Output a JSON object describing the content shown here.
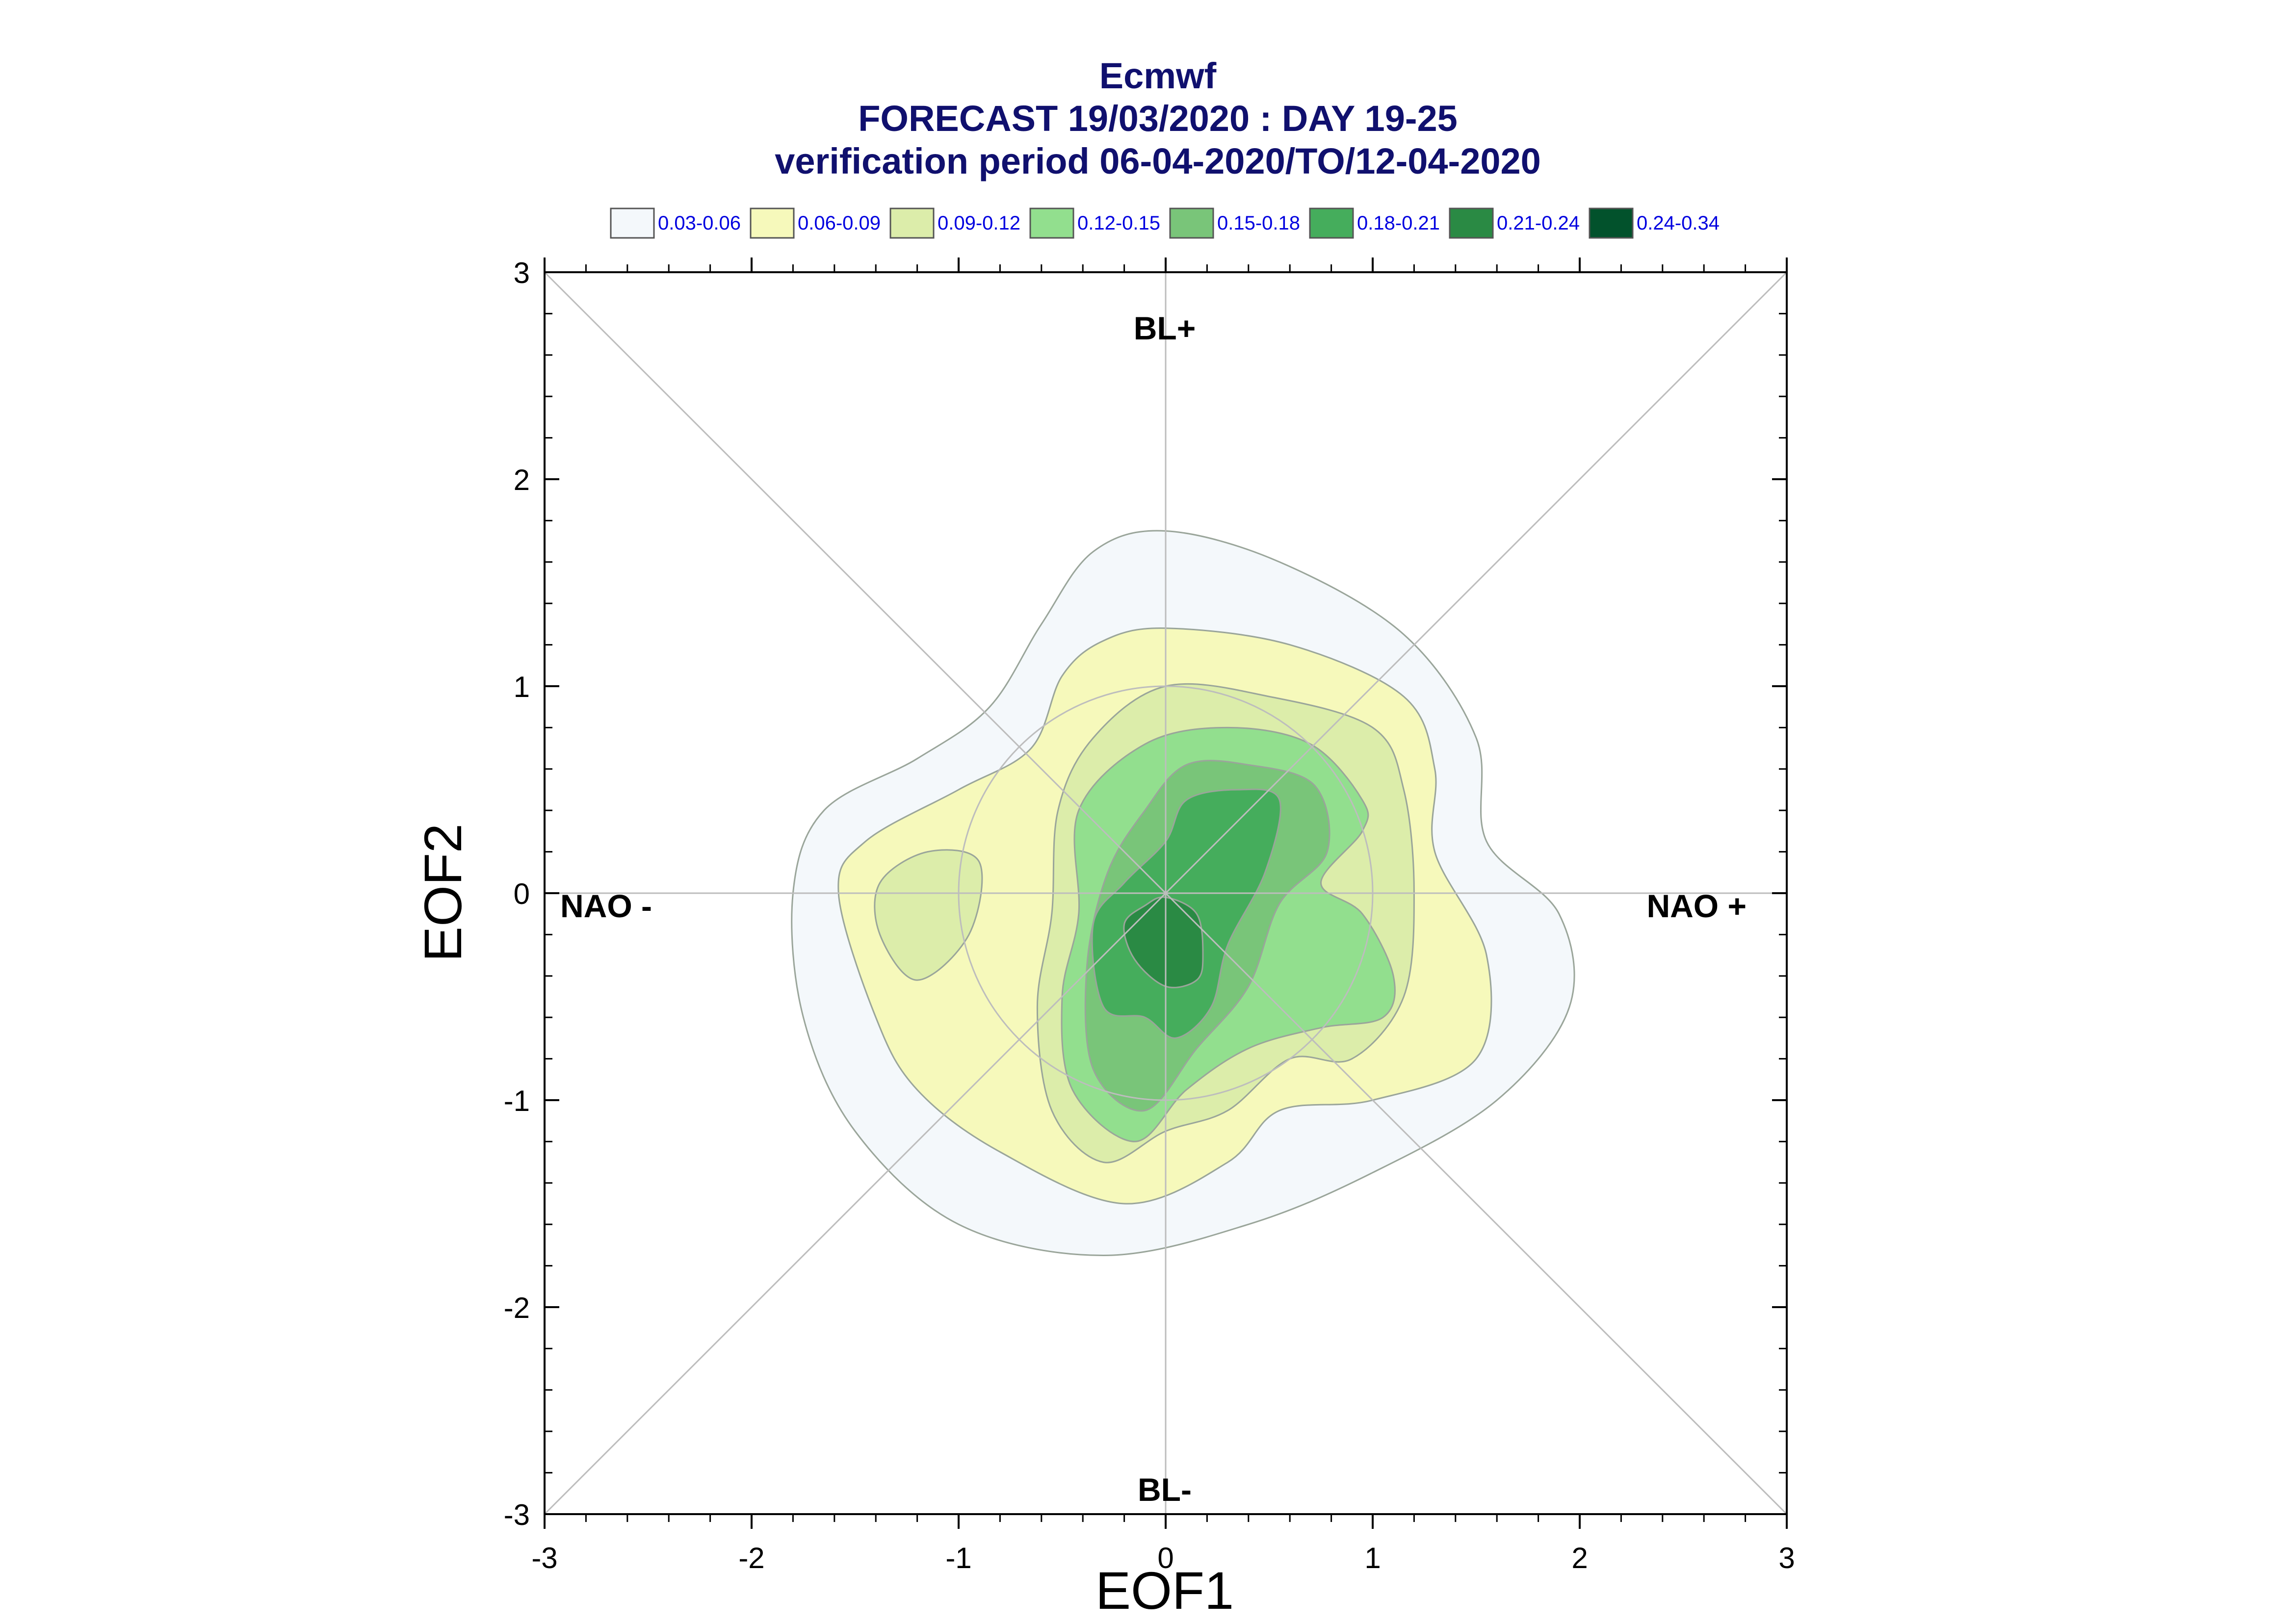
{
  "chart_data": {
    "type": "contour",
    "title_lines": [
      "Ecmwf",
      "FORECAST 19/03/2020 : DAY 19-25",
      "verification period 06-04-2020/TO/12-04-2020"
    ],
    "xlabel": "EOF1",
    "ylabel": "EOF2",
    "xlim": [
      -3,
      3
    ],
    "ylim": [
      -3,
      3
    ],
    "x_ticks": [
      "-3",
      "-2",
      "-1",
      "0",
      "1",
      "2",
      "3"
    ],
    "y_ticks": [
      "-3",
      "-2",
      "-1",
      "0",
      "1",
      "2",
      "3"
    ],
    "legend": {
      "placement": "top",
      "levels": [
        {
          "label": "0.03-0.06",
          "color": "#f4f8fb"
        },
        {
          "label": "0.06-0.09",
          "color": "#f6f9bb"
        },
        {
          "label": "0.09-0.12",
          "color": "#dcedaa"
        },
        {
          "label": "0.12-0.15",
          "color": "#92df8e"
        },
        {
          "label": "0.15-0.18",
          "color": "#79c579"
        },
        {
          "label": "0.18-0.21",
          "color": "#45ad5c"
        },
        {
          "label": "0.21-0.24",
          "color": "#2a8a44"
        },
        {
          "label": "0.24-0.34",
          "color": "#02522c"
        }
      ]
    },
    "regime_labels": {
      "top": "BL+",
      "bottom": "BL-",
      "left": "NAO -",
      "right": "NAO +"
    },
    "reference_circle_radius": 1,
    "contours": [
      {
        "level": "0.03-0.06",
        "points": [
          [
            0,
            1.75
          ],
          [
            0.55,
            1.6
          ],
          [
            1.15,
            1.25
          ],
          [
            1.5,
            0.75
          ],
          [
            1.55,
            0.25
          ],
          [
            1.9,
            -0.1
          ],
          [
            1.95,
            -0.55
          ],
          [
            1.6,
            -1.0
          ],
          [
            1.0,
            -1.35
          ],
          [
            0.4,
            -1.6
          ],
          [
            -0.3,
            -1.75
          ],
          [
            -1.0,
            -1.6
          ],
          [
            -1.5,
            -1.15
          ],
          [
            -1.75,
            -0.6
          ],
          [
            -1.8,
            0.0
          ],
          [
            -1.65,
            0.4
          ],
          [
            -1.2,
            0.65
          ],
          [
            -0.85,
            0.9
          ],
          [
            -0.6,
            1.3
          ],
          [
            -0.35,
            1.65
          ]
        ]
      },
      {
        "level": "0.06-0.09",
        "points": [
          [
            0,
            1.28
          ],
          [
            0.6,
            1.2
          ],
          [
            1.15,
            0.95
          ],
          [
            1.3,
            0.6
          ],
          [
            1.3,
            0.2
          ],
          [
            1.55,
            -0.3
          ],
          [
            1.5,
            -0.8
          ],
          [
            1.0,
            -1.0
          ],
          [
            0.55,
            -1.05
          ],
          [
            0.3,
            -1.3
          ],
          [
            -0.2,
            -1.5
          ],
          [
            -0.8,
            -1.25
          ],
          [
            -1.2,
            -0.95
          ],
          [
            -1.4,
            -0.6
          ],
          [
            -1.58,
            0.0
          ],
          [
            -1.45,
            0.25
          ],
          [
            -1.0,
            0.5
          ],
          [
            -0.65,
            0.7
          ],
          [
            -0.5,
            1.05
          ],
          [
            -0.3,
            1.22
          ]
        ]
      },
      {
        "level": "0.09-0.12",
        "points": [
          [
            0,
            1.0
          ],
          [
            0.5,
            0.95
          ],
          [
            1.0,
            0.8
          ],
          [
            1.15,
            0.5
          ],
          [
            1.2,
            0.0
          ],
          [
            1.15,
            -0.5
          ],
          [
            0.9,
            -0.8
          ],
          [
            0.6,
            -0.8
          ],
          [
            0.3,
            -1.05
          ],
          [
            0.0,
            -1.15
          ],
          [
            -0.3,
            -1.3
          ],
          [
            -0.55,
            -1.05
          ],
          [
            -0.62,
            -0.55
          ],
          [
            -0.55,
            -0.1
          ],
          [
            -0.52,
            0.4
          ],
          [
            -0.35,
            0.75
          ]
        ]
      },
      {
        "level": "0.09-0.12",
        "points": [
          [
            -1.15,
            0.2
          ],
          [
            -0.9,
            0.15
          ],
          [
            -0.95,
            -0.2
          ],
          [
            -1.2,
            -0.42
          ],
          [
            -1.38,
            -0.2
          ],
          [
            -1.38,
            0.05
          ]
        ]
      },
      {
        "level": "0.12-0.15",
        "points": [
          [
            -0.1,
            0.72
          ],
          [
            0.3,
            0.8
          ],
          [
            0.7,
            0.72
          ],
          [
            0.95,
            0.45
          ],
          [
            0.95,
            0.3
          ],
          [
            0.75,
            0.05
          ],
          [
            0.95,
            -0.1
          ],
          [
            1.1,
            -0.4
          ],
          [
            1.05,
            -0.6
          ],
          [
            0.75,
            -0.65
          ],
          [
            0.4,
            -0.75
          ],
          [
            0.1,
            -0.95
          ],
          [
            -0.15,
            -1.2
          ],
          [
            -0.45,
            -0.95
          ],
          [
            -0.5,
            -0.5
          ],
          [
            -0.42,
            -0.1
          ],
          [
            -0.42,
            0.4
          ]
        ]
      },
      {
        "level": "0.15-0.18",
        "points": [
          [
            0.1,
            0.62
          ],
          [
            0.4,
            0.62
          ],
          [
            0.72,
            0.52
          ],
          [
            0.78,
            0.2
          ],
          [
            0.55,
            -0.05
          ],
          [
            0.4,
            -0.45
          ],
          [
            0.15,
            -0.75
          ],
          [
            -0.1,
            -1.05
          ],
          [
            -0.35,
            -0.85
          ],
          [
            -0.38,
            -0.35
          ],
          [
            -0.28,
            0.1
          ],
          [
            -0.1,
            0.4
          ]
        ]
      },
      {
        "level": "0.18-0.21",
        "points": [
          [
            0.1,
            0.45
          ],
          [
            0.35,
            0.5
          ],
          [
            0.55,
            0.45
          ],
          [
            0.48,
            0.1
          ],
          [
            0.3,
            -0.25
          ],
          [
            0.22,
            -0.55
          ],
          [
            0.05,
            -0.7
          ],
          [
            -0.1,
            -0.6
          ],
          [
            -0.3,
            -0.55
          ],
          [
            -0.35,
            -0.15
          ],
          [
            -0.2,
            0.05
          ],
          [
            0.0,
            0.25
          ]
        ]
      },
      {
        "level": "0.21-0.24",
        "points": [
          [
            0.0,
            -0.02
          ],
          [
            0.15,
            -0.1
          ],
          [
            0.18,
            -0.3
          ],
          [
            0.15,
            -0.42
          ],
          [
            0.0,
            -0.45
          ],
          [
            -0.15,
            -0.32
          ],
          [
            -0.2,
            -0.15
          ],
          [
            -0.1,
            -0.06
          ]
        ]
      }
    ]
  }
}
